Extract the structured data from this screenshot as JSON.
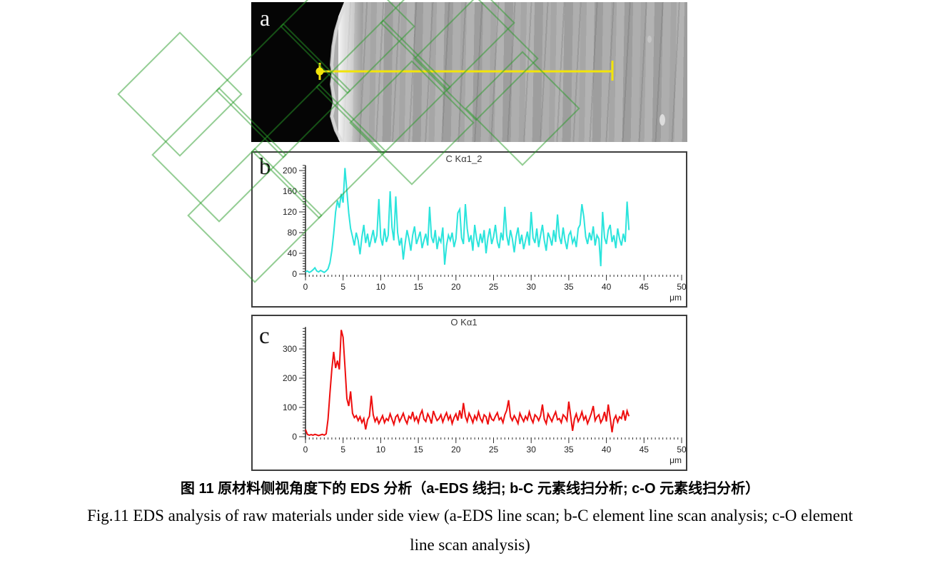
{
  "figure": {
    "panel_a": {
      "label": "a"
    },
    "panel_b": {
      "label": "b"
    },
    "panel_c": {
      "label": "c"
    },
    "caption_zh": "图 11 原材料侧视角度下的 EDS 分析（a-EDS 线扫; b-C 元素线扫分析; c-O 元素线扫分析）",
    "caption_en_line1": "Fig.11 EDS analysis of raw materials under side view (a-EDS line scan; b-C element line scan analysis; c-O element",
    "caption_en_line2": "line scan analysis)"
  },
  "colors": {
    "c_line": "#2BE4DC",
    "o_line": "#EE0E0E",
    "scan_line": "#F2E40A",
    "watermark_green": "rgba(40,155,40,0.5)",
    "panel_border": "#3d3d3d"
  },
  "chart_data": [
    {
      "type": "line",
      "id": "b",
      "title": "C Kα1_2",
      "xlabel": "μm",
      "legend": null,
      "grid": false,
      "xlim": [
        0,
        50
      ],
      "ylim": [
        0,
        210
      ],
      "x_ticks": [
        0,
        5,
        10,
        15,
        20,
        25,
        30,
        35,
        40,
        45,
        50
      ],
      "y_ticks": [
        0,
        40,
        80,
        120,
        160,
        200
      ],
      "x_minor_step": 0.5,
      "y_minor_step": 5,
      "color": "#2BE4DC",
      "x_start": 0,
      "x_step": 0.25,
      "values": [
        4,
        6,
        3,
        5,
        8,
        12,
        6,
        4,
        7,
        5,
        3,
        6,
        10,
        22,
        45,
        78,
        120,
        142,
        128,
        155,
        138,
        205,
        160,
        118,
        88,
        72,
        55,
        80,
        65,
        38,
        72,
        95,
        60,
        78,
        52,
        68,
        85,
        60,
        75,
        145,
        70,
        55,
        88,
        62,
        75,
        160,
        90,
        65,
        150,
        80,
        55,
        70,
        28,
        60,
        85,
        68,
        45,
        75,
        92,
        58,
        70,
        82,
        50,
        65,
        78,
        55,
        130,
        72,
        60,
        85,
        48,
        70,
        62,
        90,
        18,
        55,
        75,
        65,
        80,
        52,
        68,
        118,
        125,
        70,
        58,
        135,
        88,
        62,
        75,
        45,
        95,
        68,
        52,
        78,
        60,
        85,
        40,
        70,
        88,
        58,
        72,
        95,
        62,
        50,
        80,
        65,
        130,
        75,
        55,
        85,
        68,
        42,
        72,
        90,
        58,
        76,
        48,
        65,
        82,
        55,
        120,
        70,
        60,
        88,
        52,
        75,
        95,
        65,
        45,
        80,
        70,
        55,
        85,
        62,
        115,
        72,
        58,
        90,
        65,
        48,
        75,
        82,
        60,
        70,
        52,
        88,
        95,
        135,
        110,
        72,
        58,
        80,
        65,
        92,
        55,
        75,
        68,
        15,
        120,
        70,
        58,
        85,
        95,
        62,
        75,
        50,
        88,
        68,
        55,
        78,
        62,
        140,
        85
      ]
    },
    {
      "type": "line",
      "id": "c",
      "title": "O Kα1",
      "xlabel": "μm",
      "legend": null,
      "grid": false,
      "xlim": [
        0,
        50
      ],
      "ylim": [
        0,
        375
      ],
      "x_ticks": [
        0,
        5,
        10,
        15,
        20,
        25,
        30,
        35,
        40,
        45,
        50
      ],
      "y_ticks": [
        0,
        100,
        200,
        300
      ],
      "x_minor_step": 0.5,
      "y_minor_step": 10,
      "color": "#EE0E0E",
      "x_start": 0,
      "x_step": 0.25,
      "values": [
        25,
        8,
        5,
        7,
        5,
        8,
        6,
        4,
        6,
        8,
        5,
        10,
        60,
        150,
        230,
        290,
        235,
        260,
        230,
        365,
        340,
        240,
        130,
        105,
        155,
        80,
        65,
        72,
        55,
        68,
        48,
        62,
        25,
        58,
        70,
        140,
        75,
        52,
        65,
        45,
        58,
        72,
        48,
        62,
        55,
        78,
        60,
        42,
        68,
        75,
        52,
        65,
        80,
        58,
        45,
        70,
        62,
        85,
        55,
        68,
        48,
        75,
        90,
        60,
        52,
        78,
        65,
        45,
        88,
        70,
        55,
        62,
        75,
        50,
        68,
        82,
        58,
        72,
        45,
        65,
        78,
        55,
        90,
        62,
        115,
        70,
        52,
        80,
        65,
        48,
        72,
        58,
        85,
        62,
        50,
        75,
        68,
        42,
        78,
        60,
        55,
        70,
        82,
        58,
        65,
        48,
        75,
        90,
        125,
        68,
        55,
        72,
        60,
        45,
        80,
        65,
        52,
        70,
        58,
        85,
        62,
        48,
        75,
        68,
        55,
        72,
        110,
        60,
        45,
        78,
        65,
        52,
        70,
        85,
        58,
        62,
        48,
        75,
        68,
        55,
        120,
        72,
        20,
        60,
        78,
        52,
        65,
        85,
        58,
        70,
        45,
        62,
        80,
        105,
        55,
        68,
        75,
        48,
        60,
        85,
        52,
        110,
        65,
        15,
        58,
        72,
        50,
        68,
        62,
        90,
        55,
        88,
        70
      ]
    }
  ]
}
